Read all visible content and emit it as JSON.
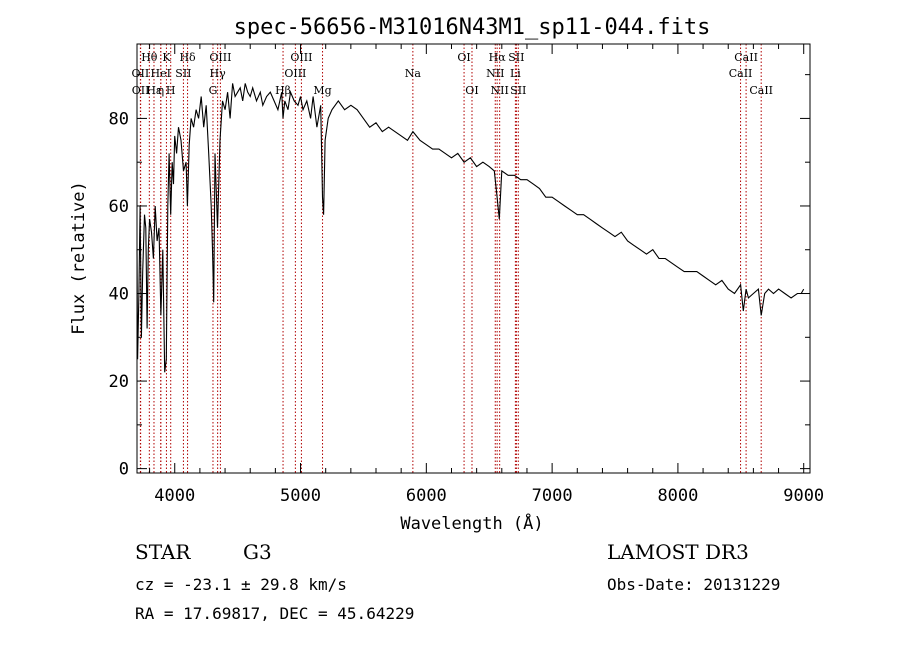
{
  "chart_data": {
    "type": "line",
    "title": "spec-56656-M31016N43M1_sp11-044.fits",
    "xlabel": "Wavelength (Å)",
    "ylabel": "Flux (relative)",
    "xlim": [
      3700,
      9050
    ],
    "ylim": [
      -1,
      97
    ],
    "x_ticks": [
      4000,
      5000,
      6000,
      7000,
      8000,
      9000
    ],
    "y_ticks": [
      0,
      20,
      40,
      60,
      80
    ],
    "grid": false,
    "series": [
      {
        "name": "flux",
        "x": [
          3700,
          3705,
          3715,
          3725,
          3735,
          3745,
          3760,
          3770,
          3780,
          3790,
          3800,
          3815,
          3830,
          3845,
          3860,
          3875,
          3890,
          3905,
          3920,
          3933,
          3945,
          3955,
          3968,
          3980,
          3990,
          4000,
          4015,
          4030,
          4050,
          4070,
          4090,
          4101,
          4115,
          4130,
          4150,
          4170,
          4190,
          4210,
          4230,
          4250,
          4270,
          4290,
          4300,
          4310,
          4320,
          4340,
          4360,
          4380,
          4400,
          4420,
          4440,
          4460,
          4480,
          4500,
          4520,
          4540,
          4560,
          4580,
          4600,
          4620,
          4650,
          4680,
          4700,
          4730,
          4760,
          4790,
          4820,
          4850,
          4861,
          4875,
          4900,
          4920,
          4950,
          4980,
          5000,
          5020,
          5050,
          5080,
          5100,
          5130,
          5160,
          5175,
          5183,
          5195,
          5220,
          5250,
          5300,
          5350,
          5400,
          5450,
          5500,
          5550,
          5600,
          5650,
          5700,
          5750,
          5800,
          5850,
          5893,
          5950,
          6000,
          6050,
          6100,
          6150,
          6200,
          6250,
          6300,
          6350,
          6400,
          6450,
          6500,
          6540,
          6563,
          6580,
          6600,
          6650,
          6700,
          6750,
          6800,
          6850,
          6900,
          6950,
          7000,
          7050,
          7100,
          7150,
          7200,
          7250,
          7300,
          7350,
          7400,
          7450,
          7500,
          7550,
          7600,
          7650,
          7700,
          7750,
          7800,
          7850,
          7900,
          7950,
          8000,
          8050,
          8100,
          8150,
          8200,
          8250,
          8300,
          8350,
          8400,
          8450,
          8498,
          8520,
          8542,
          8560,
          8600,
          8640,
          8662,
          8690,
          8720,
          8760,
          8800,
          8850,
          8900,
          8950,
          8980,
          9000
        ],
        "y": [
          50,
          25,
          40,
          60,
          30,
          45,
          58,
          55,
          32,
          50,
          57,
          54,
          48,
          60,
          52,
          55,
          35,
          50,
          22,
          25,
          60,
          72,
          58,
          70,
          65,
          76,
          72,
          78,
          75,
          68,
          70,
          60,
          74,
          80,
          78,
          82,
          80,
          85,
          78,
          83,
          72,
          60,
          50,
          38,
          72,
          55,
          75,
          84,
          82,
          86,
          80,
          88,
          85,
          86,
          87,
          84,
          88,
          86,
          85,
          87,
          84,
          86,
          83,
          85,
          86,
          84,
          82,
          86,
          80,
          84,
          82,
          86,
          84,
          83,
          85,
          82,
          84,
          80,
          85,
          78,
          83,
          62,
          58,
          75,
          80,
          82,
          84,
          82,
          83,
          82,
          80,
          78,
          79,
          77,
          78,
          77,
          76,
          75,
          77,
          75,
          74,
          73,
          73,
          72,
          71,
          72,
          70,
          71,
          69,
          70,
          69,
          68,
          62,
          57,
          68,
          67,
          67,
          66,
          66,
          65,
          64,
          62,
          62,
          61,
          60,
          59,
          58,
          58,
          57,
          56,
          55,
          54,
          53,
          54,
          52,
          51,
          50,
          49,
          50,
          48,
          48,
          47,
          46,
          45,
          45,
          45,
          44,
          43,
          42,
          43,
          41,
          40,
          42,
          36,
          41,
          39,
          40,
          41,
          35,
          40,
          41,
          40,
          41,
          40,
          39,
          40,
          40,
          41
        ]
      }
    ],
    "spectral_lines": [
      {
        "label": "Hθ",
        "wavelength": 3798,
        "row": 1
      },
      {
        "label": "OII",
        "wavelength": 3727,
        "row": 2
      },
      {
        "label": "OII",
        "wavelength": 3729,
        "row": 3
      },
      {
        "label": "Hε",
        "wavelength": 3835,
        "row": 3
      },
      {
        "label": "HeI",
        "wavelength": 3889,
        "row": 2
      },
      {
        "label": "η",
        "wavelength": 3889,
        "row": 3
      },
      {
        "label": "K",
        "wavelength": 3934,
        "row": 1
      },
      {
        "label": "H",
        "wavelength": 3968,
        "row": 3
      },
      {
        "label": "SII",
        "wavelength": 4069,
        "row": 2
      },
      {
        "label": "Hδ",
        "wavelength": 4102,
        "row": 1
      },
      {
        "label": "G",
        "wavelength": 4304,
        "row": 3
      },
      {
        "label": "Hγ",
        "wavelength": 4341,
        "row": 2
      },
      {
        "label": "OIII",
        "wavelength": 4363,
        "row": 1
      },
      {
        "label": "Hβ",
        "wavelength": 4861,
        "row": 3
      },
      {
        "label": "OIII",
        "wavelength": 4959,
        "row": 2
      },
      {
        "label": "OIII",
        "wavelength": 5007,
        "row": 1
      },
      {
        "label": "Mg",
        "wavelength": 5175,
        "row": 3
      },
      {
        "label": "Na",
        "wavelength": 5893,
        "row": 2
      },
      {
        "label": "OI",
        "wavelength": 6300,
        "row": 1
      },
      {
        "label": "OI",
        "wavelength": 6363,
        "row": 3
      },
      {
        "label": "NII",
        "wavelength": 6548,
        "row": 2
      },
      {
        "label": "Hα",
        "wavelength": 6563,
        "row": 1
      },
      {
        "label": "NII",
        "wavelength": 6583,
        "row": 3
      },
      {
        "label": "SII",
        "wavelength": 6716,
        "row": 1
      },
      {
        "label": "Li",
        "wavelength": 6708,
        "row": 2
      },
      {
        "label": "SII",
        "wavelength": 6731,
        "row": 3
      },
      {
        "label": "CaII",
        "wavelength": 8498,
        "row": 2
      },
      {
        "label": "CaII",
        "wavelength": 8542,
        "row": 1
      },
      {
        "label": "CaII",
        "wavelength": 8662,
        "row": 3
      }
    ],
    "line_color": "#000000",
    "marker_color": "#b00000"
  },
  "info": {
    "object_class": "STAR",
    "subclass": "G3",
    "survey": "LAMOST DR3",
    "redshift": "cz = -23.1 ± 29.8 km/s",
    "obs_date": "Obs-Date: 20131229",
    "coords": "RA =  17.69817, DEC =  45.64229"
  }
}
